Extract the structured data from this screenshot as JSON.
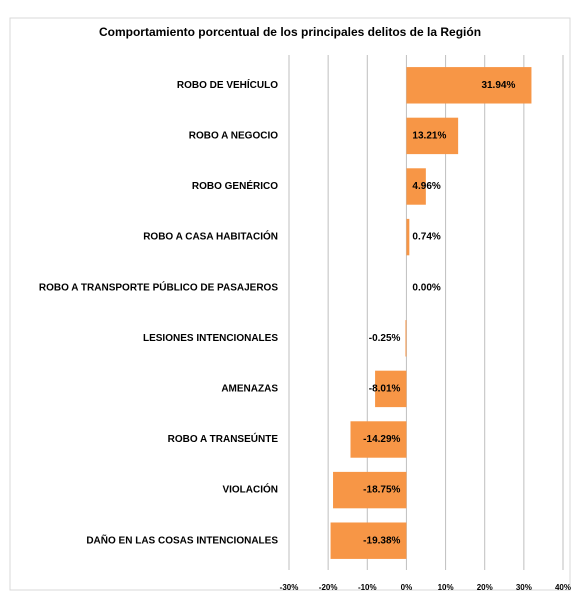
{
  "chart_data": {
    "type": "bar",
    "orientation": "horizontal",
    "title": "Comportamiento porcentual de los principales  delitos de la Región",
    "categories": [
      "ROBO DE VEHÍCULO",
      "ROBO A NEGOCIO",
      "ROBO GENÉRICO",
      "ROBO A CASA HABITACIÓN",
      "ROBO A TRANSPORTE PÚBLICO DE PASAJEROS",
      "LESIONES INTENCIONALES",
      "AMENAZAS",
      "ROBO A TRANSEÚNTE",
      "VIOLACIÓN",
      "DAÑO EN LAS COSAS INTENCIONALES"
    ],
    "values": [
      31.94,
      13.21,
      4.96,
      0.74,
      0.0,
      -0.25,
      -8.01,
      -14.29,
      -18.75,
      -19.38
    ],
    "value_labels": [
      "31.94%",
      "13.21%",
      "4.96%",
      "0.74%",
      "0.00%",
      "-0.25%",
      "-8.01%",
      "-14.29%",
      "-18.75%",
      "-19.38%"
    ],
    "color": "#f79646",
    "xlim": [
      -30,
      40
    ],
    "xticks": [
      {
        "value": -30,
        "label": "-30%"
      },
      {
        "value": -20,
        "label": "-20%"
      },
      {
        "value": -10,
        "label": "-10%"
      },
      {
        "value": 0,
        "label": "0%"
      },
      {
        "value": 10,
        "label": "10%"
      },
      {
        "value": 20,
        "label": "20%"
      },
      {
        "value": 30,
        "label": "30%"
      },
      {
        "value": 40,
        "label": "40%"
      }
    ],
    "grid": true
  }
}
